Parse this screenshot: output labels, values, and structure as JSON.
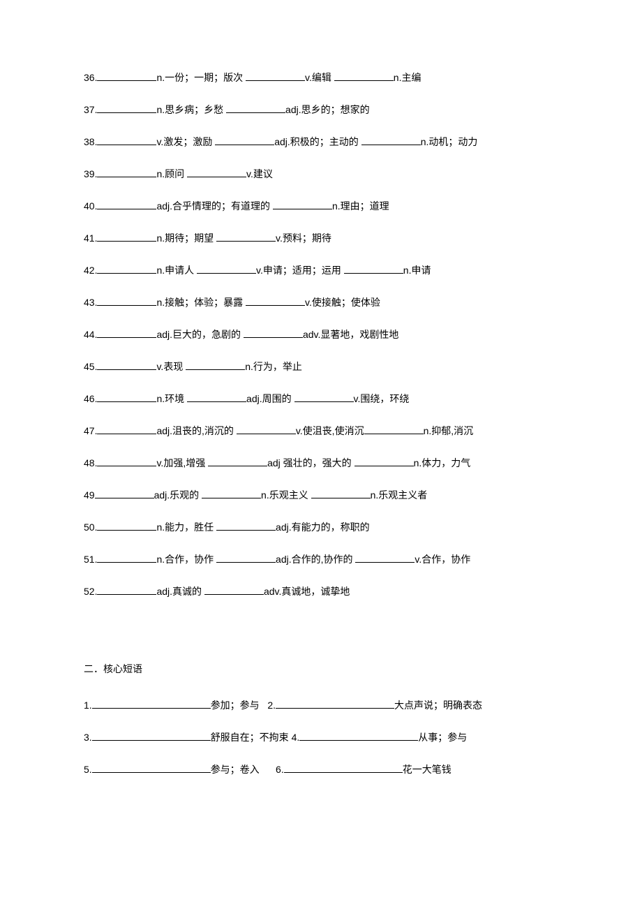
{
  "items": [
    {
      "num": "36.",
      "parts": [
        "n.一份；一期；版次 ",
        "v.编辑 ",
        "n.主编"
      ]
    },
    {
      "num": "37.",
      "parts": [
        "n.思乡病；乡愁 ",
        "adj.思乡的；想家的"
      ]
    },
    {
      "num": "38.",
      "parts": [
        "v.激发；激励 ",
        "adj.积极的；主动的 ",
        "n.动机；动力"
      ]
    },
    {
      "num": "39.",
      "parts": [
        "n.顾问 ",
        "v.建议"
      ]
    },
    {
      "num": "40.",
      "parts": [
        "adj.合乎情理的；有道理的 ",
        "n.理由；道理"
      ]
    },
    {
      "num": "41.",
      "parts": [
        "n.期待；期望 ",
        "v.预料；期待"
      ]
    },
    {
      "num": "42.",
      "parts": [
        "n.申请人 ",
        "v.申请；适用；运用 ",
        "n.申请"
      ]
    },
    {
      "num": "43.",
      "parts": [
        "n.接触；体验；暴露 ",
        "v.使接触；使体验"
      ]
    },
    {
      "num": "44.",
      "parts": [
        "adj.巨大的，急剧的  ",
        "adv.显著地，戏剧性地"
      ]
    },
    {
      "num": "45.",
      "parts": [
        "v.表现 ",
        "n.行为，举止"
      ]
    },
    {
      "num": "46.",
      "parts": [
        "n.环境 ",
        "adj.周围的 ",
        "v.围绕，环绕"
      ]
    },
    {
      "num": "47.",
      "parts": [
        "adj.沮丧的,消沉的 ",
        "v.使沮丧,使消沉",
        "n.抑郁,消沉"
      ]
    },
    {
      "num": "48.",
      "parts": [
        "v.加强,增强 ",
        "adj 强壮的，强大的 ",
        "n.体力，力气"
      ]
    },
    {
      "num": "49",
      "parts": [
        "adj.乐观的 ",
        "n.乐观主义 ",
        "n.乐观主义者"
      ]
    },
    {
      "num": "50.",
      "parts": [
        "n.能力，胜任 ",
        "adj.有能力的，称职的"
      ]
    },
    {
      "num": "51.",
      "parts": [
        "n.合作，协作 ",
        "adj.合作的,协作的 ",
        "v.合作，协作"
      ]
    },
    {
      "num": "52.",
      "parts": [
        "adj.真诚的 ",
        "adv.真诚地，诚挚地"
      ]
    }
  ],
  "section2_title": "二．核心短语",
  "phrases": [
    {
      "num": "1.",
      "label": "参加；参与",
      "num2": "2.",
      "label2": "大点声说；明确表态"
    },
    {
      "num": "3.",
      "label": "舒服自在；不拘束",
      "num2": "4.",
      "label2": "从事；参与"
    },
    {
      "num": "5.",
      "label": "参与；卷入",
      "num2": "6.",
      "label2": "花一大笔钱"
    }
  ]
}
